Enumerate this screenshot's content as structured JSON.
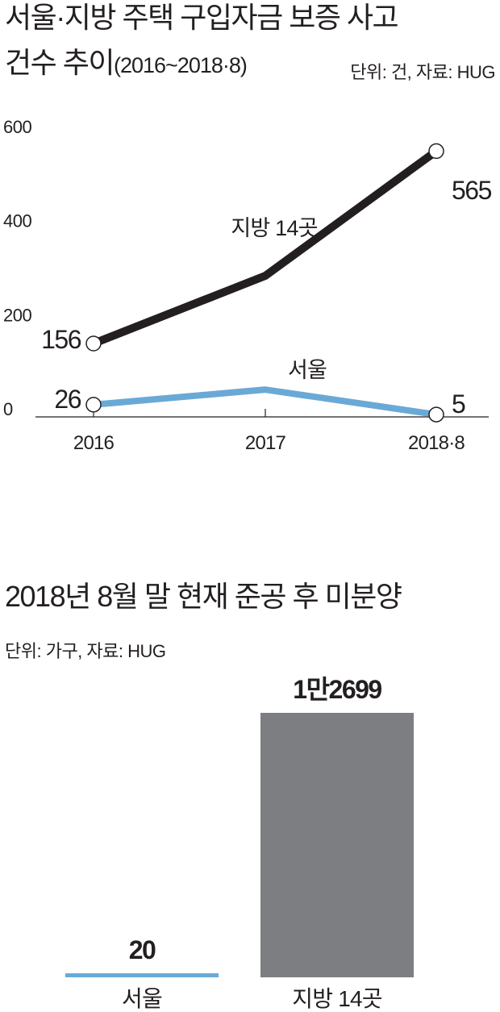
{
  "chart1": {
    "title_line1": "서울·지방 주택 구입자금 보증 사고",
    "title_line2": "건수 추이",
    "title_period": "(2016~2018·8)",
    "unit": "단위: 건, 자료: HUG"
  },
  "chart2": {
    "title": "2018년 8월 말 현재 준공 후 미분양",
    "unit": "단위: 가구, 자료: HUG"
  },
  "chart_data": [
    {
      "type": "line",
      "title": "서울·지방 주택 구입자금 보증 사고 건수 추이(2016~2018·8)",
      "unit": "건",
      "x": [
        "2016",
        "2017",
        "2018·8"
      ],
      "y_ticks": [
        "600",
        "400",
        "200",
        "0"
      ],
      "ylim": [
        0,
        600
      ],
      "series": [
        {
          "name": "지방 14곳",
          "values": [
            156,
            300,
            565
          ],
          "color": "#231f20",
          "labels": [
            "156",
            "",
            "565"
          ]
        },
        {
          "name": "서울",
          "values": [
            26,
            58,
            5
          ],
          "color": "#6aa9d6",
          "labels": [
            "26",
            "",
            "5"
          ]
        }
      ],
      "grid": false
    },
    {
      "type": "bar",
      "title": "2018년 8월 말 현재 준공 후 미분양",
      "unit": "가구",
      "categories": [
        "서울",
        "지방 14곳"
      ],
      "values": [
        20,
        12699
      ],
      "value_labels": [
        "20",
        "1만2699"
      ],
      "colors": [
        "#6aa9d6",
        "#7d7e82"
      ]
    }
  ]
}
